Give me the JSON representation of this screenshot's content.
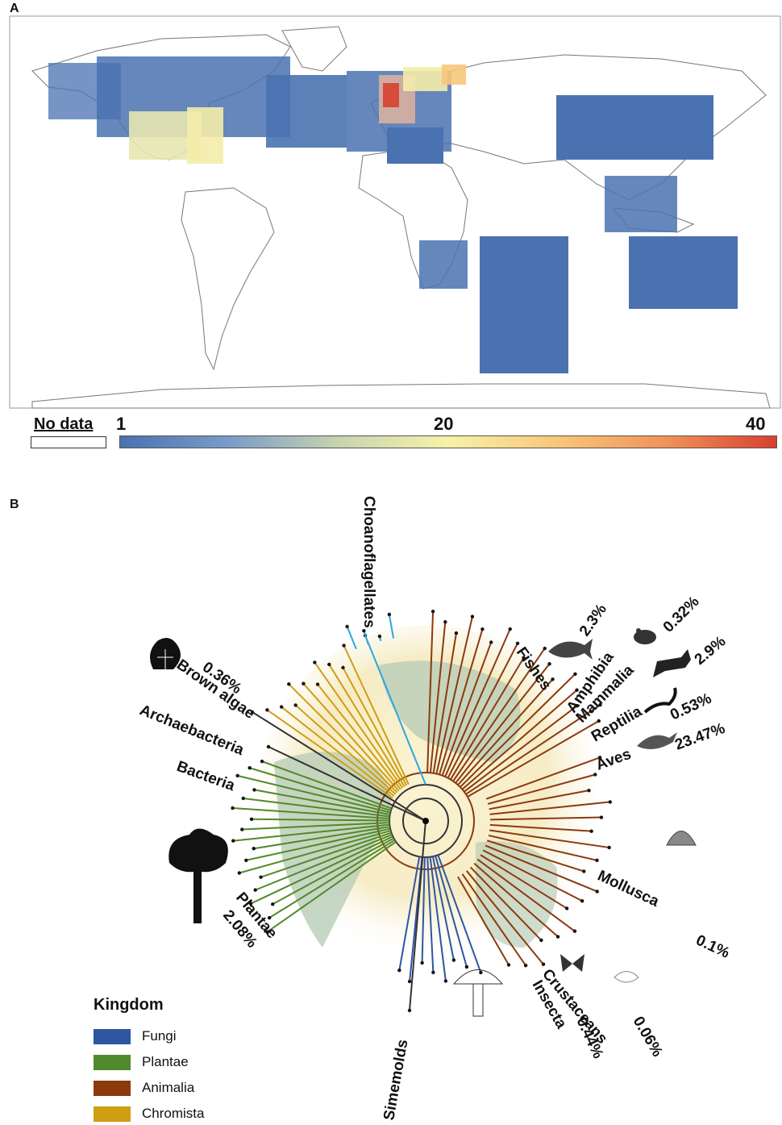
{
  "panel_a": {
    "label": "A",
    "scale": {
      "no_data_label": "No data",
      "min_label": "1",
      "mid_label": "20",
      "max_label": "40",
      "colors": [
        "#4a72b0",
        "#7a9cc8",
        "#c8d3b0",
        "#f7f2a8",
        "#f8c67a",
        "#f09258",
        "#d84030"
      ]
    }
  },
  "panel_b": {
    "label": "B",
    "legend": {
      "title": "Kingdom",
      "items": [
        {
          "label": "Fungi",
          "color": "#2e56a0"
        },
        {
          "label": "Plantae",
          "color": "#4f8a2c"
        },
        {
          "label": "Animalia",
          "color": "#8b3a0e"
        },
        {
          "label": "Chromista",
          "color": "#cf9e13"
        }
      ]
    },
    "tree_labels": {
      "choanoflagellates": "Choanoflagellates",
      "fishes": "Fishes",
      "fishes_pct": "2.3%",
      "amphibia": "Amphibia",
      "amphibia_pct": "0.32%",
      "mammalia": "Mammalia",
      "mammalia_pct": "2.9%",
      "reptilia": "Reptilia",
      "reptilia_pct": "0.53%",
      "aves": "Aves",
      "aves_pct": "23.47%",
      "mollusca": "Mollusca",
      "mollusca_pct": "0.1%",
      "crustaceans": "Crustaceans",
      "crustaceans_pct": "0.06%",
      "insecta": "Insecta",
      "insecta_pct": "0.44%",
      "simemolds": "Simemolds",
      "plantae": "Plantae",
      "plantae_pct": "2.08%",
      "bacteria": "Bacteria",
      "archaebacteria": "Archaebacteria",
      "brown_algae": "Brown algae",
      "brown_algae_pct": "0.36%"
    },
    "colors": {
      "fungi": "#2e56a0",
      "plantae": "#4f8a2c",
      "animalia": "#8b3a0e",
      "chromista": "#cf9e13",
      "choano": "#29a8e0",
      "other": "#333333"
    },
    "icons": [
      "tree-icon",
      "seaweed-icon",
      "fish-icon",
      "frog-icon",
      "fox-icon",
      "lizard-icon",
      "bird-icon",
      "shell-icon",
      "butterfly-icon",
      "crustacean-icon",
      "mushroom-icon",
      "globe-icon"
    ]
  }
}
